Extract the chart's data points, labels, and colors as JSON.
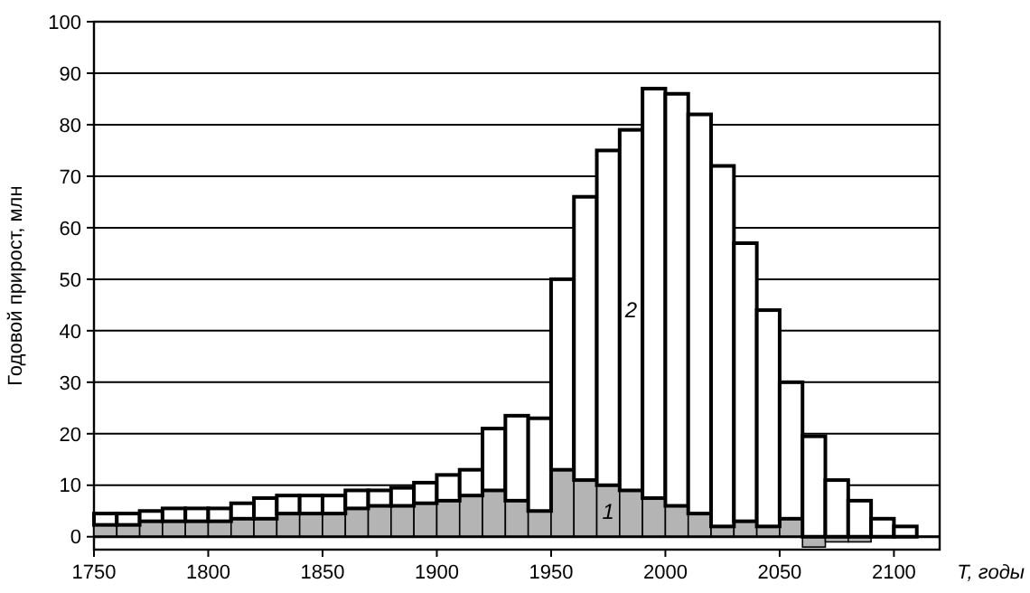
{
  "chart_data": {
    "type": "bar",
    "stacked": true,
    "ylabel": "Годовой прирост, млн",
    "xlabel": "T, годы",
    "x": [
      1755,
      1765,
      1775,
      1785,
      1795,
      1805,
      1815,
      1825,
      1835,
      1845,
      1855,
      1865,
      1875,
      1885,
      1895,
      1905,
      1915,
      1925,
      1935,
      1945,
      1955,
      1965,
      1975,
      1985,
      1995,
      2005,
      2015,
      2025,
      2035,
      2045,
      2055,
      2065,
      2075,
      2085,
      2095,
      2105
    ],
    "series": [
      {
        "name": "1",
        "color": "#b4b4b4",
        "values": [
          2.3,
          2.3,
          3,
          3,
          3,
          3,
          3.5,
          3.5,
          4.5,
          4.5,
          4.5,
          5.5,
          6,
          6,
          6.5,
          7,
          8,
          9,
          7,
          5,
          13,
          11,
          10,
          9,
          7.5,
          6,
          4.5,
          2,
          3,
          2,
          3.5,
          -2,
          -1,
          -1,
          null,
          null
        ]
      },
      {
        "name": "2",
        "color": "#ffffff",
        "values": [
          2.2,
          2.2,
          2,
          2.5,
          2.5,
          2.5,
          3,
          4,
          3.5,
          3.5,
          3.5,
          3.5,
          3,
          3.5,
          4,
          5,
          5,
          12,
          16.5,
          18,
          37,
          55,
          65,
          70,
          79.5,
          80,
          77.5,
          70,
          54,
          42,
          26.5,
          19.5,
          11,
          7,
          3.5,
          2
        ]
      }
    ],
    "xlim": [
      1750,
      2120
    ],
    "xticks": [
      1750,
      1800,
      1850,
      1900,
      1950,
      2000,
      2050,
      2100
    ],
    "ylim": [
      -2.5,
      100
    ],
    "yticks": [
      0,
      10,
      20,
      30,
      40,
      50,
      60,
      70,
      80,
      90,
      100
    ],
    "grid": "y"
  }
}
